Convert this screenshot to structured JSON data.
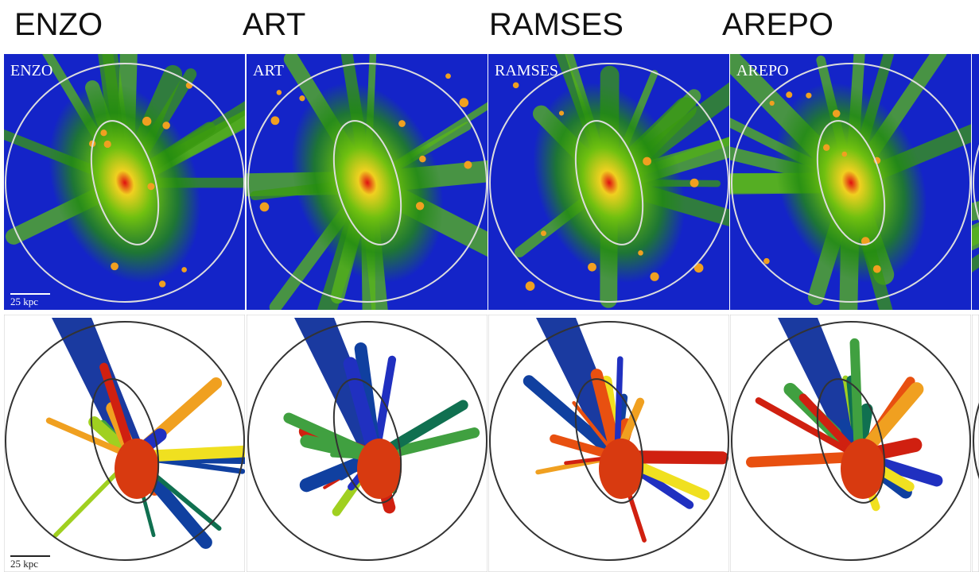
{
  "column_headers": [
    "ENZO",
    "ART",
    "RAMSES",
    "AREPO"
  ],
  "panels": {
    "top_row": {
      "labels": [
        "ENZO",
        "ART",
        "RAMSES",
        "AREPO"
      ],
      "scale_bar": "25 kpc"
    },
    "bottom_row": {
      "scale_bar": "25 kpc"
    }
  }
}
